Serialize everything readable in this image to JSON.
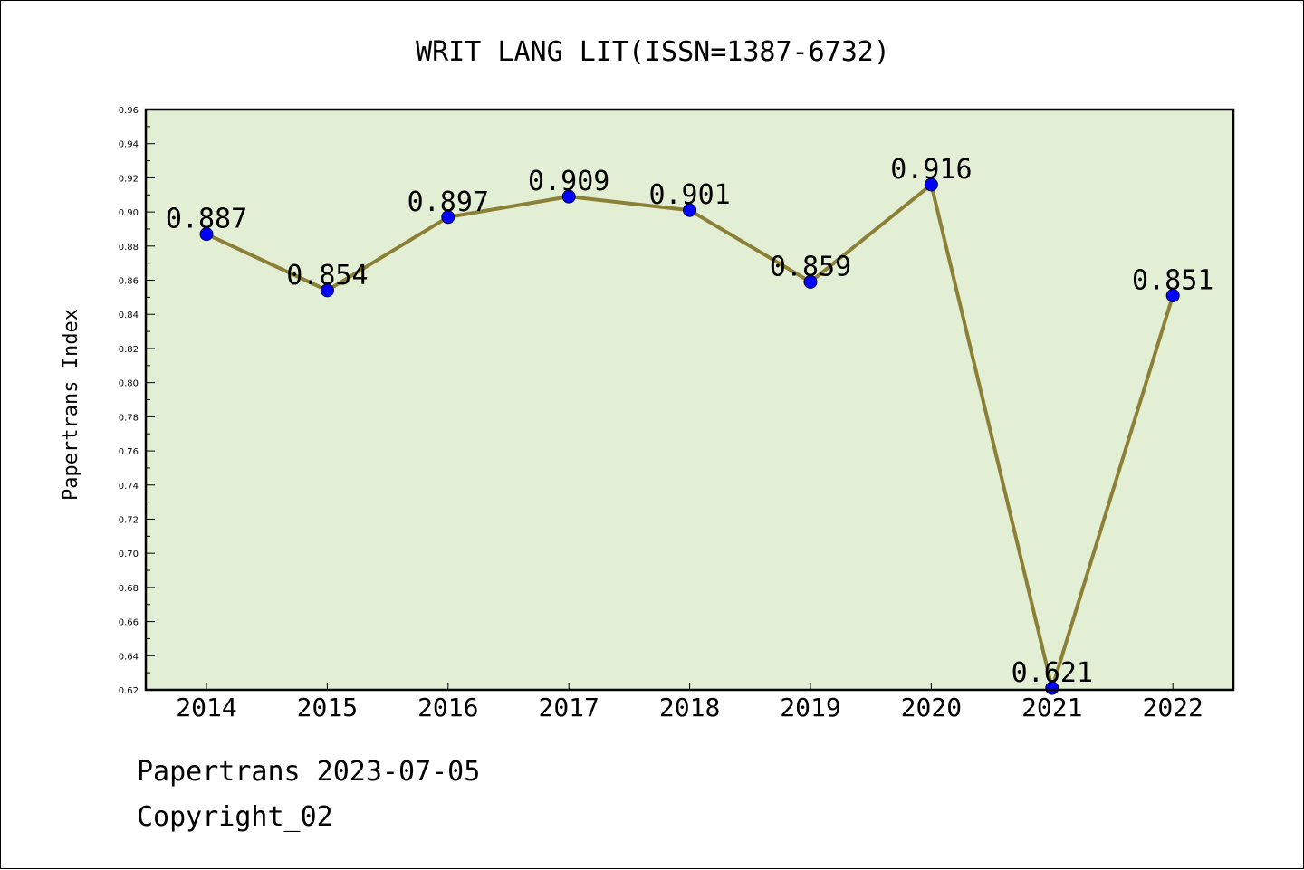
{
  "chart_data": {
    "type": "line",
    "title": "WRIT LANG LIT(ISSN=1387-6732)",
    "xlabel": "",
    "ylabel": "Papertrans Index",
    "categories": [
      "2014",
      "2015",
      "2016",
      "2017",
      "2018",
      "2019",
      "2020",
      "2021",
      "2022"
    ],
    "series": [
      {
        "values": [
          0.887,
          0.854,
          0.897,
          0.909,
          0.901,
          0.859,
          0.916,
          0.621,
          0.851
        ]
      }
    ],
    "data_labels": [
      "0.887",
      "0.854",
      "0.897",
      "0.909",
      "0.901",
      "0.859",
      "0.916",
      "0.621",
      "0.851"
    ],
    "ylim": [
      0.62,
      0.96
    ],
    "yticks": [
      "0.62",
      "0.64",
      "0.66",
      "0.68",
      "0.70",
      "0.72",
      "0.74",
      "0.76",
      "0.78",
      "0.80",
      "0.82",
      "0.84",
      "0.86",
      "0.88",
      "0.90",
      "0.92",
      "0.94",
      "0.96"
    ],
    "grid": false,
    "colors": {
      "plot_background": "#e2efd5",
      "line": "#8b8036",
      "marker": "#0000ff"
    }
  },
  "footer": {
    "line1": "Papertrans 2023-07-05",
    "line2": "Copyright_02"
  }
}
